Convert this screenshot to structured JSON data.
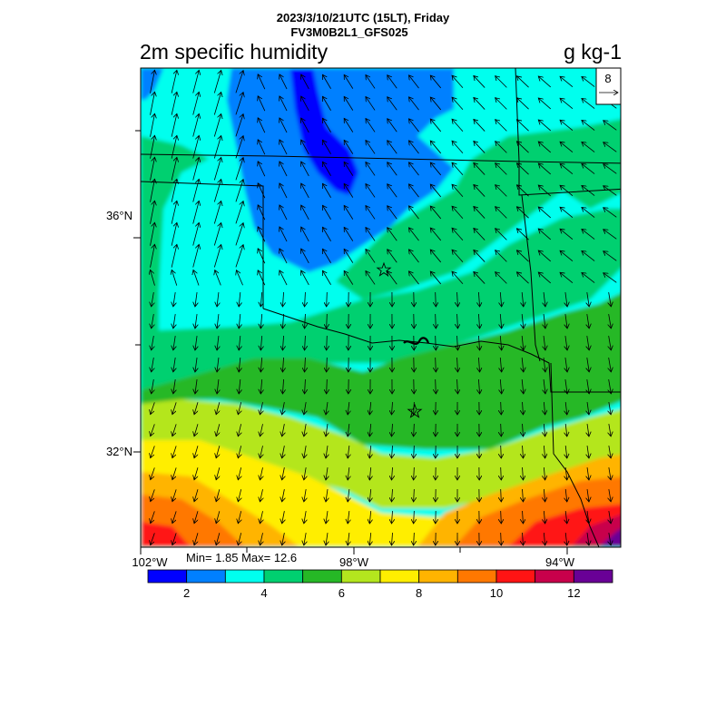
{
  "header": {
    "datetime": "2023/3/10/21UTC (15LT), Friday",
    "model": "FV3M0B2L1_GFS025"
  },
  "map": {
    "title": "2m specific humidity",
    "units": "g kg-1",
    "vector_reference": "8",
    "lat_labels": [
      "36°N",
      "32°N"
    ],
    "lon_labels": [
      "102°W",
      "98°W",
      "94°W"
    ],
    "stats": "Min= 1.85 Max= 12.6"
  },
  "colorbar": {
    "colors": [
      "#0000ff",
      "#0080ff",
      "#00ffee",
      "#00d070",
      "#26b826",
      "#b4e61e",
      "#ffee00",
      "#ffb400",
      "#ff7800",
      "#ff1414",
      "#c8004b",
      "#690096"
    ],
    "tick_labels": [
      "2",
      "4",
      "6",
      "8",
      "10",
      "12"
    ]
  }
}
